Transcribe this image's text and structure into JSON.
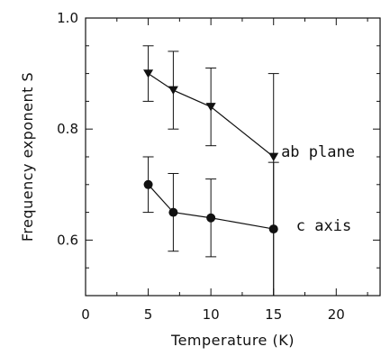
{
  "chart_data": {
    "type": "line",
    "xlabel": "Temperature (K)",
    "ylabel": "Frequency exponent S",
    "xlim": [
      0,
      23.5
    ],
    "ylim": [
      0.5,
      1.0
    ],
    "xticks": [
      0,
      5,
      10,
      15,
      20
    ],
    "xtick_labels": [
      "0",
      "5",
      "10",
      "15",
      "20"
    ],
    "yticks": [
      0.6,
      0.8,
      1.0
    ],
    "ytick_labels": [
      "0.6",
      "0.8",
      "1.0"
    ],
    "grid": false,
    "series": [
      {
        "name": "ab plane",
        "marker": "triangle-down",
        "x": [
          5,
          7,
          10,
          15
        ],
        "y": [
          0.9,
          0.87,
          0.84,
          0.75
        ],
        "err_low": [
          0.85,
          0.8,
          0.77,
          0.5
        ],
        "err_high": [
          0.95,
          0.94,
          0.91,
          0.9
        ]
      },
      {
        "name": "c axis",
        "marker": "circle",
        "x": [
          5,
          7,
          10,
          15
        ],
        "y": [
          0.7,
          0.65,
          0.64,
          0.62
        ],
        "err_low": [
          0.65,
          0.58,
          0.57,
          0.5
        ],
        "err_high": [
          0.75,
          0.72,
          0.71,
          0.74
        ]
      }
    ],
    "annotations": [
      {
        "text": "ab plane",
        "x": 15.6,
        "y": 0.76
      },
      {
        "text": "c axis",
        "x": 16.8,
        "y": 0.627
      }
    ]
  }
}
